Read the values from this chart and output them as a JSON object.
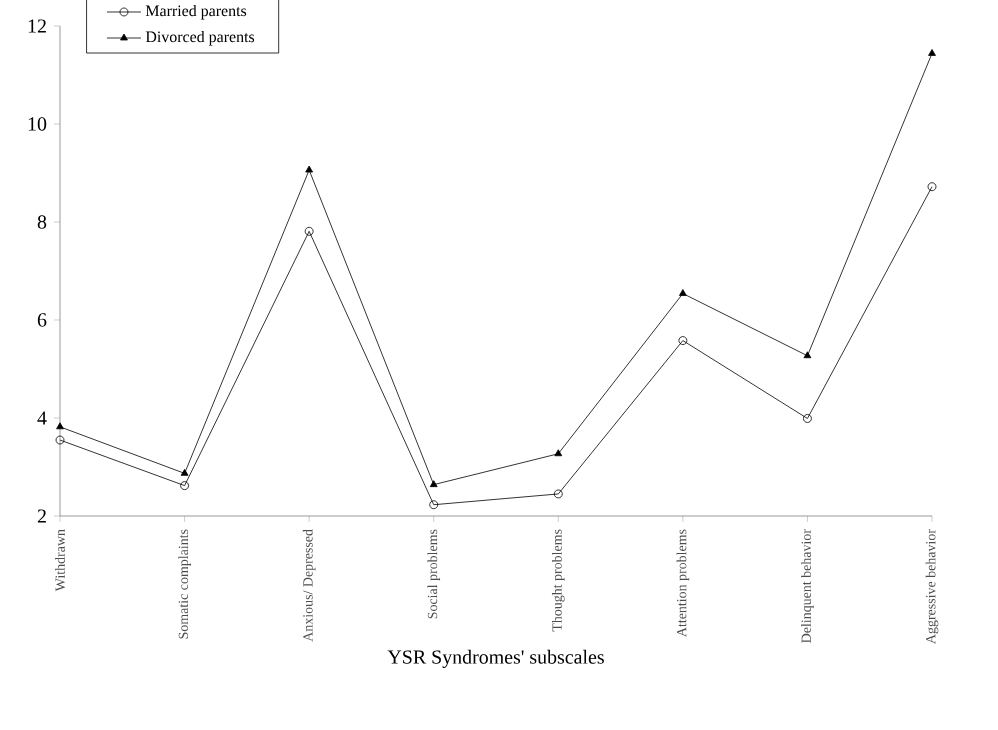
{
  "chart_data": {
    "type": "line",
    "xlabel": "YSR Syndromes' subscales",
    "categories": [
      "Withdrawn",
      "Somatic complaints",
      "Anxious/ Depressed",
      "Social problems",
      "Thought problems",
      "Attention problems",
      "Delinquent behavior",
      "Aggressive behavior"
    ],
    "series": [
      {
        "name": "Married parents",
        "color": "#000000",
        "marker": "circle",
        "values": [
          3.55,
          2.62,
          7.81,
          2.23,
          2.45,
          5.58,
          3.99,
          8.72
        ]
      },
      {
        "name": "Divorced parents",
        "color": "#000000",
        "marker": "triangle",
        "values": [
          3.82,
          2.87,
          9.06,
          2.64,
          3.27,
          6.54,
          5.27,
          11.44
        ]
      }
    ],
    "ylim": [
      2,
      12
    ],
    "yticks": [
      2,
      4,
      6,
      8,
      10,
      12
    ],
    "grid": false,
    "legend": "top left",
    "line_style": "solid"
  }
}
